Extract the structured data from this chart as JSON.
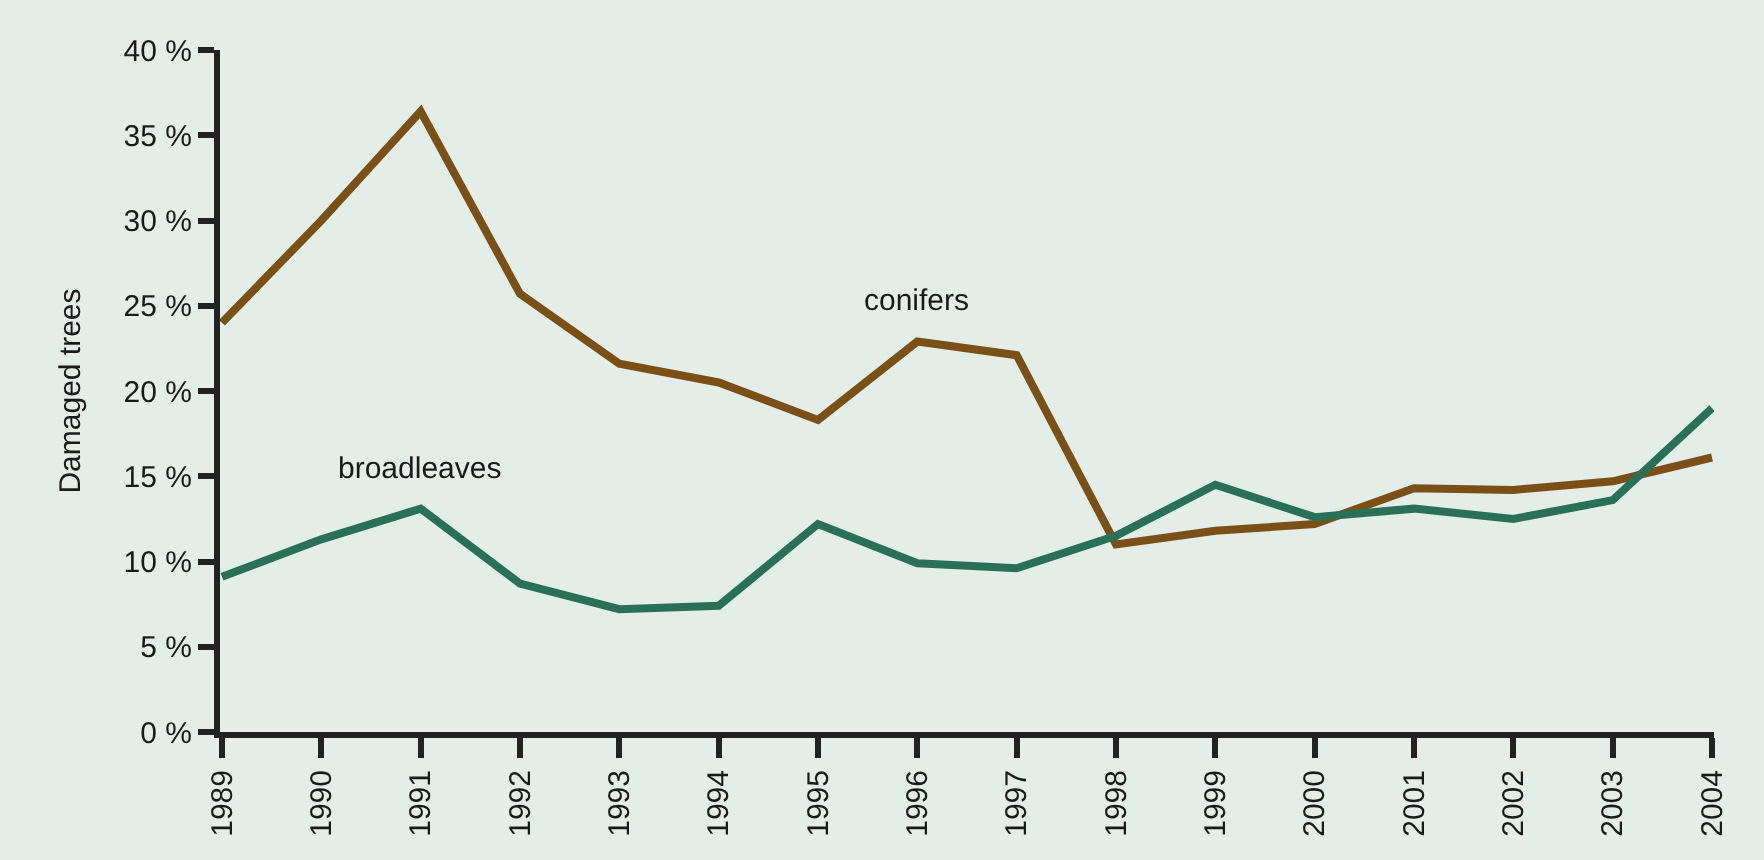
{
  "chart_data": {
    "type": "line",
    "ylabel": "Damaged trees",
    "categories": [
      "1989",
      "1990",
      "1991",
      "1992",
      "1993",
      "1994",
      "1995",
      "1996",
      "1997",
      "1998",
      "1999",
      "2000",
      "2001",
      "2002",
      "2003",
      "2004"
    ],
    "series": [
      {
        "name": "conifers",
        "color": "#7a5016",
        "values": [
          24.0,
          30.0,
          36.4,
          25.7,
          21.6,
          20.5,
          18.3,
          22.9,
          22.1,
          11.0,
          11.8,
          12.2,
          14.3,
          14.2,
          14.7,
          16.1
        ]
      },
      {
        "name": "broadleaves",
        "color": "#2a7058",
        "values": [
          9.1,
          11.3,
          13.1,
          8.7,
          7.2,
          7.4,
          12.2,
          9.9,
          9.6,
          11.5,
          14.5,
          12.6,
          13.1,
          12.5,
          13.6,
          19.0
        ]
      }
    ],
    "ylim": [
      0,
      40
    ],
    "yticks": [
      {
        "value": 0,
        "label": "0 %"
      },
      {
        "value": 5,
        "label": "5 %"
      },
      {
        "value": 10,
        "label": "10 %"
      },
      {
        "value": 15,
        "label": "15 %"
      },
      {
        "value": 20,
        "label": "20 %"
      },
      {
        "value": 25,
        "label": "25 %"
      },
      {
        "value": 30,
        "label": "30 %"
      },
      {
        "value": 35,
        "label": "35 %"
      },
      {
        "value": 40,
        "label": "40 %"
      }
    ],
    "grid": false,
    "legend": false,
    "marker": "none",
    "line_style": "solid"
  }
}
